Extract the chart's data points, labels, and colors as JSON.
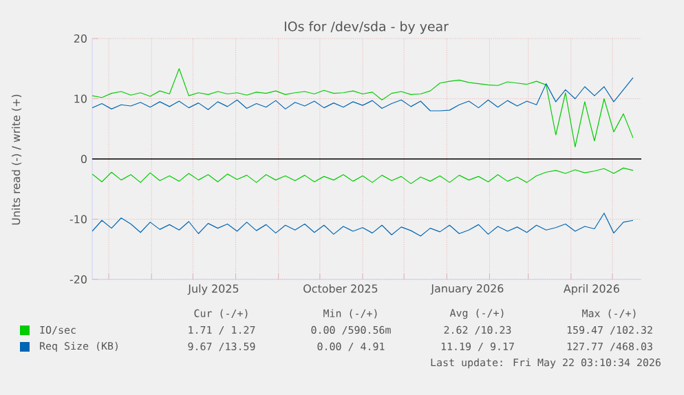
{
  "chart_data": {
    "type": "line",
    "title": "IOs for /dev/sda - by year",
    "ylabel": "Units read (-) / write (+)",
    "x": [
      "2025-04-19",
      "2025-04-26",
      "2025-05-03",
      "2025-05-10",
      "2025-05-17",
      "2025-05-24",
      "2025-05-31",
      "2025-06-07",
      "2025-06-14",
      "2025-06-21",
      "2025-06-28",
      "2025-07-05",
      "2025-07-12",
      "2025-07-19",
      "2025-07-26",
      "2025-08-02",
      "2025-08-09",
      "2025-08-16",
      "2025-08-23",
      "2025-08-30",
      "2025-09-06",
      "2025-09-13",
      "2025-09-20",
      "2025-09-27",
      "2025-10-04",
      "2025-10-11",
      "2025-10-18",
      "2025-10-25",
      "2025-11-01",
      "2025-11-08",
      "2025-11-15",
      "2025-11-22",
      "2025-11-29",
      "2025-12-06",
      "2025-12-13",
      "2025-12-20",
      "2025-12-27",
      "2026-01-03",
      "2026-01-10",
      "2026-01-17",
      "2026-01-24",
      "2026-01-31",
      "2026-02-07",
      "2026-02-14",
      "2026-02-21",
      "2026-02-28",
      "2026-03-07",
      "2026-03-14",
      "2026-03-21",
      "2026-03-28",
      "2026-04-04",
      "2026-04-11",
      "2026-04-18",
      "2026-04-25",
      "2026-05-02",
      "2026-05-09",
      "2026-05-16"
    ],
    "series": [
      {
        "name": "IO/sec",
        "color": "#00cc00",
        "values": [
          10.5,
          10.2,
          10.9,
          11.2,
          10.6,
          11.0,
          10.4,
          11.3,
          10.8,
          15.0,
          10.5,
          11.0,
          10.7,
          11.2,
          10.8,
          11.0,
          10.6,
          11.1,
          10.9,
          11.3,
          10.7,
          11.0,
          11.2,
          10.8,
          11.4,
          10.9,
          11.0,
          11.3,
          10.8,
          11.1,
          9.8,
          10.9,
          11.2,
          10.7,
          10.8,
          11.3,
          12.6,
          12.9,
          13.1,
          12.7,
          12.5,
          12.3,
          12.2,
          12.8,
          12.6,
          12.4,
          12.9,
          12.3,
          4.0,
          11.0,
          2.0,
          9.5,
          3.0,
          10.0,
          4.5,
          7.5,
          3.5
        ]
      },
      {
        "color": "#00cc00",
        "values": [
          -2.5,
          -3.8,
          -2.2,
          -3.5,
          -2.6,
          -3.9,
          -2.3,
          -3.6,
          -2.8,
          -3.7,
          -2.4,
          -3.5,
          -2.6,
          -3.8,
          -2.5,
          -3.4,
          -2.7,
          -3.9,
          -2.6,
          -3.5,
          -2.8,
          -3.6,
          -2.7,
          -3.8,
          -2.9,
          -3.5,
          -2.6,
          -3.7,
          -2.8,
          -3.9,
          -2.7,
          -3.6,
          -2.9,
          -4.1,
          -3.0,
          -3.7,
          -2.8,
          -3.9,
          -2.7,
          -3.5,
          -2.9,
          -3.8,
          -2.6,
          -3.7,
          -3.0,
          -3.9,
          -2.8,
          -2.2,
          -1.9,
          -2.4,
          -1.8,
          -2.3,
          -2.0,
          -1.6,
          -2.4,
          -1.5,
          -1.9
        ]
      },
      {
        "name": "Req Size (KB)",
        "color": "#0066b3",
        "values": [
          8.5,
          9.2,
          8.3,
          9.0,
          8.8,
          9.4,
          8.6,
          9.5,
          8.7,
          9.6,
          8.5,
          9.3,
          8.2,
          9.5,
          8.7,
          9.8,
          8.4,
          9.2,
          8.6,
          9.7,
          8.3,
          9.4,
          8.8,
          9.6,
          8.5,
          9.3,
          8.6,
          9.5,
          8.9,
          9.7,
          8.4,
          9.2,
          9.8,
          8.7,
          9.6,
          8.0,
          8.0,
          8.1,
          9.0,
          9.6,
          8.5,
          9.8,
          8.6,
          9.7,
          8.8,
          9.6,
          9.0,
          12.5,
          9.5,
          11.5,
          10.0,
          12.0,
          10.5,
          12.0,
          9.5,
          11.5,
          13.5
        ]
      },
      {
        "color": "#0066b3",
        "values": [
          -12.0,
          -10.2,
          -11.5,
          -9.8,
          -10.8,
          -12.2,
          -10.5,
          -11.7,
          -10.9,
          -11.8,
          -10.4,
          -12.4,
          -10.7,
          -11.5,
          -10.8,
          -12.0,
          -10.5,
          -11.9,
          -10.9,
          -12.3,
          -11.0,
          -11.8,
          -10.8,
          -12.2,
          -11.0,
          -12.5,
          -11.2,
          -12.0,
          -11.4,
          -12.3,
          -11.0,
          -12.6,
          -11.3,
          -11.9,
          -12.8,
          -11.5,
          -12.1,
          -11.0,
          -12.4,
          -11.8,
          -10.9,
          -12.5,
          -11.2,
          -12.0,
          -11.3,
          -12.2,
          -11.0,
          -11.8,
          -11.4,
          -10.8,
          -12.0,
          -11.2,
          -11.6,
          -9.0,
          -12.3,
          -10.5,
          -10.2
        ]
      }
    ],
    "xlim": [
      "2025-04-19",
      "2026-05-22"
    ],
    "xticks": [
      {
        "value": "2025-05-01",
        "label": null
      },
      {
        "value": "2025-06-01",
        "label": null
      },
      {
        "value": "2025-07-01",
        "label": null
      },
      {
        "value": "2025-07-16",
        "label": "July 2025"
      },
      {
        "value": "2025-08-01",
        "label": null
      },
      {
        "value": "2025-09-01",
        "label": null
      },
      {
        "value": "2025-10-01",
        "label": null
      },
      {
        "value": "2025-10-16",
        "label": "October 2025"
      },
      {
        "value": "2025-11-01",
        "label": null
      },
      {
        "value": "2025-12-01",
        "label": null
      },
      {
        "value": "2026-01-01",
        "label": null
      },
      {
        "value": "2026-01-16",
        "label": "January 2026"
      },
      {
        "value": "2026-02-01",
        "label": null
      },
      {
        "value": "2026-03-01",
        "label": null
      },
      {
        "value": "2026-04-01",
        "label": null
      },
      {
        "value": "2026-04-16",
        "label": "April 2026"
      },
      {
        "value": "2026-05-01",
        "label": null
      }
    ],
    "ylim": [
      -20,
      20
    ],
    "yticks": [
      -20,
      -10,
      0,
      10,
      20
    ],
    "ref_lines": [
      {
        "axis": "y",
        "value": 0,
        "color": "#000000"
      }
    ],
    "grid": true,
    "legend": "bottom",
    "marker": "none",
    "line_style": "solid",
    "annotations": [
      "Cur (-/+)",
      "Min (-/+)",
      "Avg (-/+)",
      "Max (-/+)",
      "1.71 / 1.27",
      "0.00 /590.56m",
      "2.62 /10.23",
      "159.47 /102.32",
      "9.67 /13.59",
      "0.00 / 4.91",
      "11.19 / 9.17",
      "127.77 /468.03",
      "Last update: Fri May 22 03:10:34 2026"
    ]
  }
}
